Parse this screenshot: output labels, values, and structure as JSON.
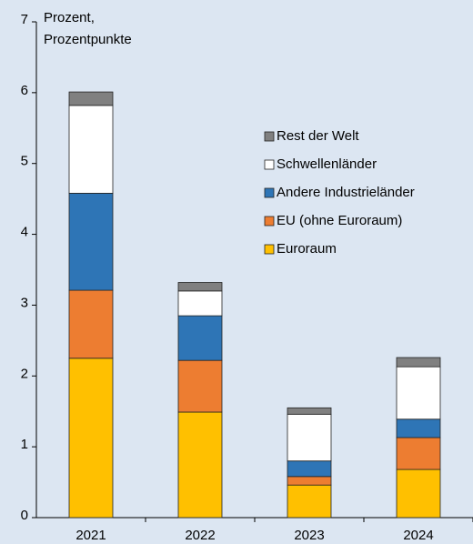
{
  "chart_data": {
    "type": "stacked_bar",
    "y_label": [
      "Prozent,",
      "Prozentpunkte"
    ],
    "categories": [
      "2021",
      "2022",
      "2023",
      "2024"
    ],
    "series": [
      {
        "name": "Euroraum",
        "color": "#ffc000",
        "values": [
          2.25,
          1.49,
          0.46,
          0.68
        ]
      },
      {
        "name": "EU (ohne Euroraum)",
        "color": "#ed7d31",
        "values": [
          0.96,
          0.73,
          0.12,
          0.45
        ]
      },
      {
        "name": "Andere Industrieländer",
        "color": "#2e75b6",
        "values": [
          1.37,
          0.63,
          0.22,
          0.26
        ]
      },
      {
        "name": "Schwellenländer",
        "color": "#ffffff",
        "values": [
          1.24,
          0.35,
          0.66,
          0.74
        ]
      },
      {
        "name": "Rest der Welt",
        "color": "#808080",
        "values": [
          0.19,
          0.12,
          0.09,
          0.13
        ]
      }
    ],
    "ylim": [
      0,
      7
    ],
    "yticks": [
      0,
      1,
      2,
      3,
      4,
      5,
      6,
      7
    ],
    "legend": "right"
  }
}
